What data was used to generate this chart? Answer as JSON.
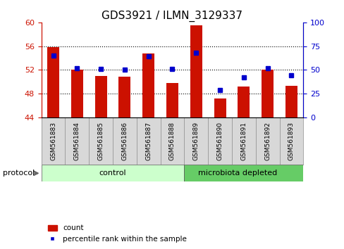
{
  "title": "GDS3921 / ILMN_3129337",
  "samples": [
    "GSM561883",
    "GSM561884",
    "GSM561885",
    "GSM561886",
    "GSM561887",
    "GSM561888",
    "GSM561889",
    "GSM561890",
    "GSM561891",
    "GSM561892",
    "GSM561893"
  ],
  "counts": [
    55.8,
    52.0,
    51.0,
    50.8,
    54.8,
    49.8,
    59.5,
    47.2,
    49.2,
    52.0,
    49.3
  ],
  "percentiles": [
    65,
    52,
    51,
    50,
    64,
    51,
    68,
    29,
    42,
    52,
    44
  ],
  "ylim_left": [
    44,
    60
  ],
  "ylim_right": [
    0,
    100
  ],
  "yticks_left": [
    44,
    48,
    52,
    56,
    60
  ],
  "yticks_right": [
    0,
    25,
    50,
    75,
    100
  ],
  "bar_color": "#cc1100",
  "dot_color": "#0000cc",
  "bar_bottom": 44,
  "control_color": "#ccffcc",
  "microbiota_color": "#66cc66",
  "control_label": "control",
  "microbiota_label": "microbiota depleted",
  "protocol_label": "protocol",
  "legend_count": "count",
  "legend_pct": "percentile rank within the sample",
  "n_control": 6,
  "n_microbiota": 5,
  "title_fontsize": 11,
  "tick_fontsize": 8,
  "plot_bg": "#ffffff"
}
